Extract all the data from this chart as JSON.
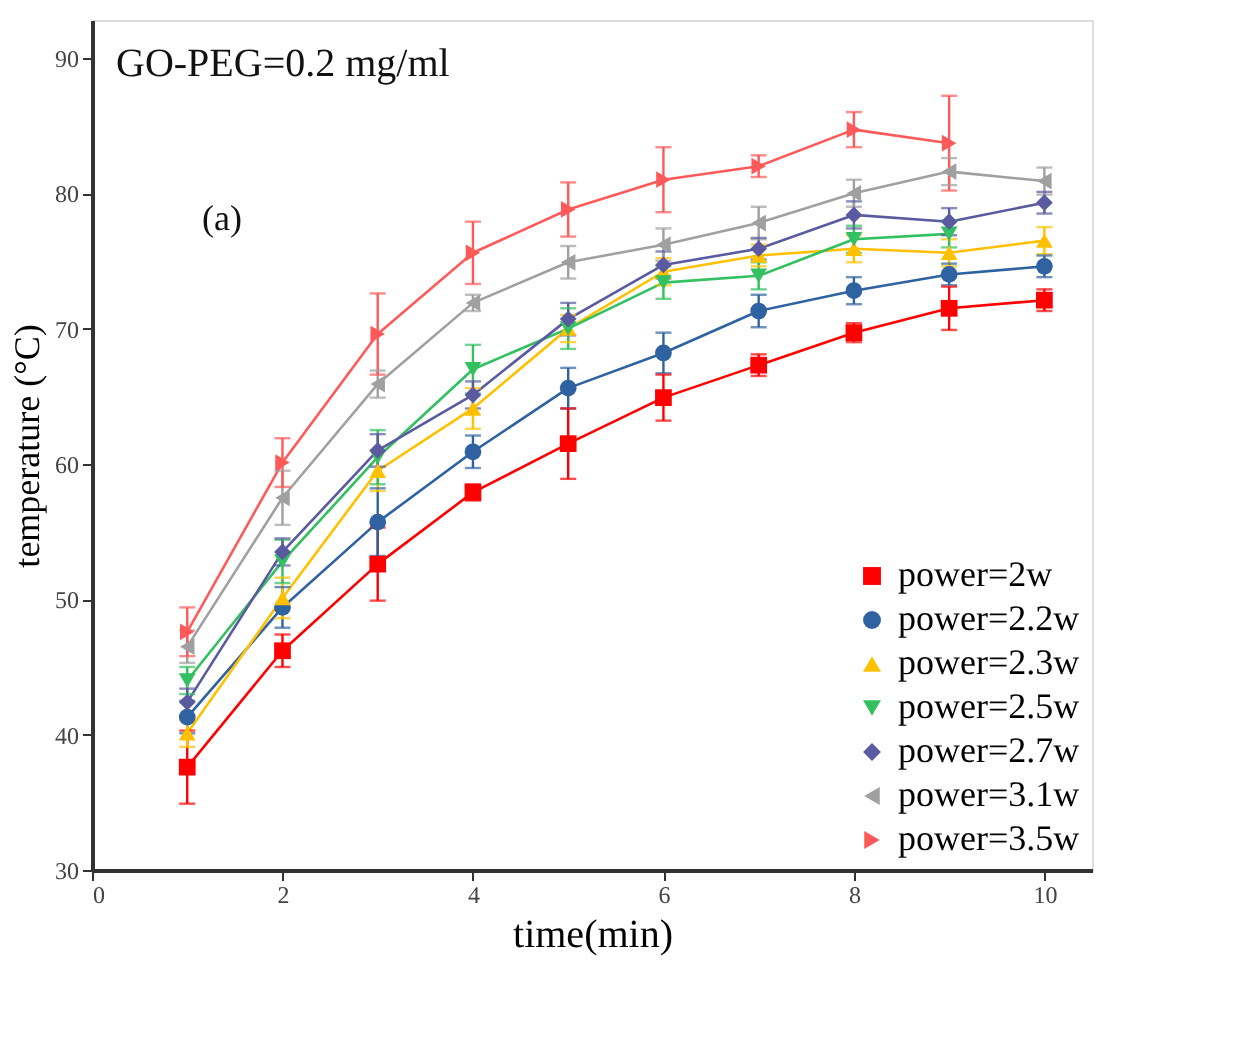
{
  "chart_data": {
    "type": "line",
    "xlabel": "time(min)",
    "ylabel": "temperature (°C)",
    "annotations": [
      "GO-PEG=0.2 mg/ml",
      "(a)"
    ],
    "x": [
      1,
      2,
      3,
      4,
      5,
      6,
      7,
      8,
      9,
      10
    ],
    "xlim": [
      0,
      10.5
    ],
    "xticks": [
      0,
      2,
      4,
      6,
      8,
      10
    ],
    "ylim": [
      30,
      92.8
    ],
    "yticks": [
      30,
      40,
      50,
      60,
      70,
      80,
      90
    ],
    "grid": false,
    "legend": "bottom right",
    "series": [
      {
        "name": "power=2w",
        "color": "#ff0000",
        "marker": "square",
        "values": [
          37.6,
          46.2,
          52.6,
          57.9,
          61.5,
          64.9,
          67.3,
          69.7,
          71.5,
          72.1
        ],
        "errors": [
          2.7,
          1.2,
          2.7,
          0.6,
          2.6,
          1.7,
          0.8,
          0.7,
          1.6,
          0.8
        ]
      },
      {
        "name": "power=2.2w",
        "color": "#2e62a0",
        "marker": "circle",
        "values": [
          41.3,
          49.4,
          55.7,
          60.9,
          65.6,
          68.2,
          71.3,
          72.8,
          74.0,
          74.6
        ],
        "errors": [
          1.2,
          1.5,
          2.5,
          1.2,
          1.5,
          1.5,
          1.2,
          1.0,
          0.8,
          0.8
        ]
      },
      {
        "name": "power=2.3w",
        "color": "#ffc000",
        "marker": "triangle-up",
        "values": [
          40.1,
          50.1,
          59.5,
          64.1,
          70.0,
          74.2,
          75.4,
          75.9,
          75.6,
          76.5
        ],
        "errors": [
          1.0,
          1.5,
          1.5,
          1.5,
          1.0,
          1.0,
          0.8,
          1.0,
          1.0,
          1.0
        ]
      },
      {
        "name": "power=2.5w",
        "color": "#33c060",
        "marker": "triangle-down",
        "values": [
          44.0,
          52.8,
          60.5,
          67.0,
          70.0,
          73.4,
          73.9,
          76.6,
          77.0,
          null
        ],
        "errors": [
          1.0,
          1.6,
          2.0,
          1.8,
          1.5,
          1.2,
          1.0,
          1.0,
          1.0,
          null
        ]
      },
      {
        "name": "power=2.7w",
        "color": "#5a5aa0",
        "marker": "diamond",
        "values": [
          42.4,
          53.5,
          61.0,
          65.1,
          70.7,
          74.7,
          75.9,
          78.4,
          77.9,
          79.3
        ],
        "errors": [
          1.0,
          1.0,
          1.2,
          1.0,
          1.2,
          1.0,
          0.8,
          1.0,
          1.0,
          0.8
        ]
      },
      {
        "name": "power=3.1w",
        "color": "#a0a0a0",
        "marker": "triangle-left",
        "values": [
          46.5,
          57.5,
          65.9,
          71.9,
          74.9,
          76.2,
          77.8,
          80.0,
          81.6,
          80.9
        ],
        "errors": [
          1.2,
          2.0,
          1.0,
          0.6,
          1.2,
          1.2,
          1.2,
          1.0,
          1.0,
          1.0
        ]
      },
      {
        "name": "power=3.5w",
        "color": "#ff5a5a",
        "marker": "triangle-right",
        "values": [
          47.6,
          60.1,
          69.6,
          75.6,
          78.8,
          81.0,
          82.0,
          84.7,
          83.7,
          null
        ],
        "errors": [
          1.8,
          1.8,
          3.0,
          2.3,
          2.0,
          2.4,
          0.8,
          1.3,
          3.5,
          null
        ]
      }
    ]
  }
}
